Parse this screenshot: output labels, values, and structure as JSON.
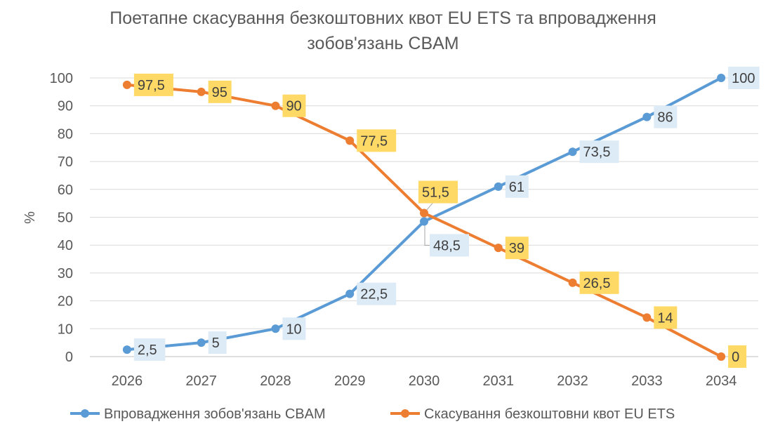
{
  "chart_data": {
    "type": "line",
    "title_line1": "Поетапне скасування безкоштовних квот EU ETS та впровадження",
    "title_line2": "зобов'язань CBAM",
    "xlabel": "",
    "ylabel": "%",
    "ylim": [
      0,
      100
    ],
    "ytick_step": 10,
    "grid": true,
    "legend_position": "bottom",
    "categories": [
      "2026",
      "2027",
      "2028",
      "2029",
      "2030",
      "2031",
      "2032",
      "2033",
      "2034"
    ],
    "series": [
      {
        "name": "Впровадження зобов'язань CBAM",
        "color": "#5B9BD5",
        "label_bg": "#DDEBF7",
        "values": [
          2.5,
          5,
          10,
          22.5,
          48.5,
          61,
          73.5,
          86,
          100
        ],
        "labels": [
          "2,5",
          "5",
          "10",
          "22,5",
          "48,5",
          "61",
          "73,5",
          "86",
          "100"
        ]
      },
      {
        "name": "Скасування безкоштовни квот EU ETS",
        "color": "#ED7D31",
        "label_bg": "#FFD966",
        "values": [
          97.5,
          95,
          90,
          77.5,
          51.5,
          39,
          26.5,
          14,
          0
        ],
        "labels": [
          "97,5",
          "95",
          "90",
          "77,5",
          "51,5",
          "39",
          "26,5",
          "14",
          "0"
        ]
      }
    ]
  }
}
